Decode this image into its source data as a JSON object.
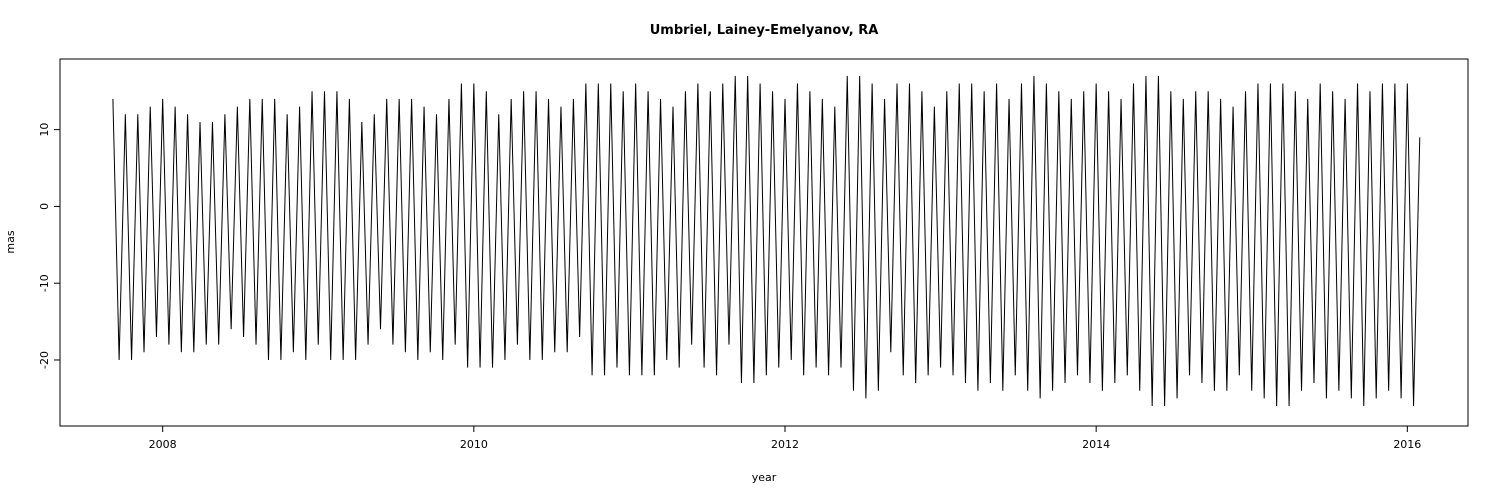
{
  "chart_data": {
    "type": "line",
    "title": "Umbriel, Lainey-Emelyanov, RA",
    "xlabel": "year",
    "ylabel": "mas",
    "xlim": [
      2007.34,
      2016.39
    ],
    "ylim": [
      -28.6,
      19.2
    ],
    "xticks": [
      2008,
      2010,
      2012,
      2014,
      2016
    ],
    "yticks": [
      -20,
      -10,
      0,
      10
    ],
    "color": "#000000",
    "grid": false,
    "x": [
      2007.68,
      2007.72,
      2007.76,
      2007.8,
      2007.84,
      2007.88,
      2007.92,
      2007.96,
      2008,
      2008.04,
      2008.08,
      2008.12,
      2008.16,
      2008.2,
      2008.24,
      2008.28,
      2008.32,
      2008.36,
      2008.4,
      2008.44,
      2008.48,
      2008.52,
      2008.56,
      2008.6,
      2008.64,
      2008.68,
      2008.72,
      2008.76,
      2008.8,
      2008.84,
      2008.88,
      2008.92,
      2008.96,
      2009,
      2009.04,
      2009.08,
      2009.12,
      2009.16,
      2009.2,
      2009.24,
      2009.28,
      2009.32,
      2009.36,
      2009.4,
      2009.44,
      2009.48,
      2009.52,
      2009.56,
      2009.6,
      2009.64,
      2009.68,
      2009.72,
      2009.76,
      2009.8,
      2009.84,
      2009.88,
      2009.92,
      2009.96,
      2010,
      2010.04,
      2010.08,
      2010.12,
      2010.16,
      2010.2,
      2010.24,
      2010.28,
      2010.32,
      2010.36,
      2010.4,
      2010.44,
      2010.48,
      2010.52,
      2010.56,
      2010.6,
      2010.64,
      2010.68,
      2010.72,
      2010.76,
      2010.8,
      2010.84,
      2010.88,
      2010.92,
      2010.96,
      2011,
      2011.04,
      2011.08,
      2011.12,
      2011.16,
      2011.2,
      2011.24,
      2011.28,
      2011.32,
      2011.36,
      2011.4,
      2011.44,
      2011.48,
      2011.52,
      2011.56,
      2011.6,
      2011.64,
      2011.68,
      2011.72,
      2011.76,
      2011.8,
      2011.84,
      2011.88,
      2011.92,
      2011.96,
      2012,
      2012.04,
      2012.08,
      2012.12,
      2012.16,
      2012.2,
      2012.24,
      2012.28,
      2012.32,
      2012.36,
      2012.4,
      2012.44,
      2012.48,
      2012.52,
      2012.56,
      2012.6,
      2012.64,
      2012.68,
      2012.72,
      2012.76,
      2012.8,
      2012.84,
      2012.88,
      2012.92,
      2012.96,
      2013,
      2013.04,
      2013.08,
      2013.12,
      2013.16,
      2013.2,
      2013.24,
      2013.28,
      2013.32,
      2013.36,
      2013.4,
      2013.44,
      2013.48,
      2013.52,
      2013.56,
      2013.6,
      2013.64,
      2013.68,
      2013.72,
      2013.76,
      2013.8,
      2013.84,
      2013.88,
      2013.92,
      2013.96,
      2014,
      2014.04,
      2014.08,
      2014.12,
      2014.16,
      2014.2,
      2014.24,
      2014.28,
      2014.32,
      2014.36,
      2014.4,
      2014.44,
      2014.48,
      2014.52,
      2014.56,
      2014.6,
      2014.64,
      2014.68,
      2014.72,
      2014.76,
      2014.8,
      2014.84,
      2014.88,
      2014.92,
      2014.96,
      2015,
      2015.04,
      2015.08,
      2015.12,
      2015.16,
      2015.2,
      2015.24,
      2015.28,
      2015.32,
      2015.36,
      2015.4,
      2015.44,
      2015.48,
      2015.52,
      2015.56,
      2015.6,
      2015.64,
      2015.68,
      2015.72,
      2015.76,
      2015.8,
      2015.84,
      2015.88,
      2015.92,
      2015.96,
      2016,
      2016.04,
      2016.08
    ],
    "values": [
      14,
      -20,
      12,
      -20,
      12,
      -19,
      13,
      -17,
      14,
      -18,
      13,
      -19,
      12,
      -19,
      11,
      -18,
      11,
      -18,
      12,
      -16,
      13,
      -17,
      14,
      -18,
      14,
      -20,
      14,
      -20,
      12,
      -19,
      13,
      -20,
      15,
      -18,
      15,
      -20,
      15,
      -20,
      14,
      -20,
      11,
      -18,
      12,
      -16,
      14,
      -18,
      14,
      -19,
      14,
      -20,
      13,
      -19,
      12,
      -20,
      14,
      -18,
      16,
      -21,
      16,
      -21,
      15,
      -21,
      12,
      -20,
      14,
      -18,
      15,
      -20,
      15,
      -20,
      14,
      -19,
      13,
      -19,
      14,
      -17,
      16,
      -22,
      16,
      -22,
      16,
      -21,
      15,
      -22,
      16,
      -22,
      15,
      -22,
      14,
      -20,
      13,
      -21,
      15,
      -18,
      16,
      -21,
      15,
      -22,
      16,
      -18,
      17,
      -23,
      17,
      -23,
      16,
      -22,
      15,
      -21,
      14,
      -20,
      16,
      -22,
      15,
      -21,
      14,
      -22,
      13,
      -21,
      17,
      -24,
      17,
      -25,
      16,
      -24,
      14,
      -19,
      16,
      -22,
      16,
      -23,
      15,
      -22,
      13,
      -21,
      15,
      -22,
      16,
      -23,
      16,
      -24,
      15,
      -23,
      16,
      -24,
      14,
      -22,
      16,
      -24,
      17,
      -25,
      16,
      -24,
      15,
      -23,
      14,
      -22,
      15,
      -23,
      16,
      -24,
      15,
      -23,
      14,
      -22,
      16,
      -24,
      17,
      -26,
      17,
      -26,
      15,
      -25,
      14,
      -22,
      15,
      -23,
      15,
      -24,
      14,
      -24,
      13,
      -22,
      15,
      -24,
      16,
      -25,
      16,
      -26,
      16,
      -26,
      15,
      -24,
      14,
      -23,
      16,
      -25,
      15,
      -24,
      14,
      -25,
      16,
      -26,
      15,
      -25,
      16,
      -24,
      16,
      -25,
      16,
      -26,
      9
    ]
  }
}
